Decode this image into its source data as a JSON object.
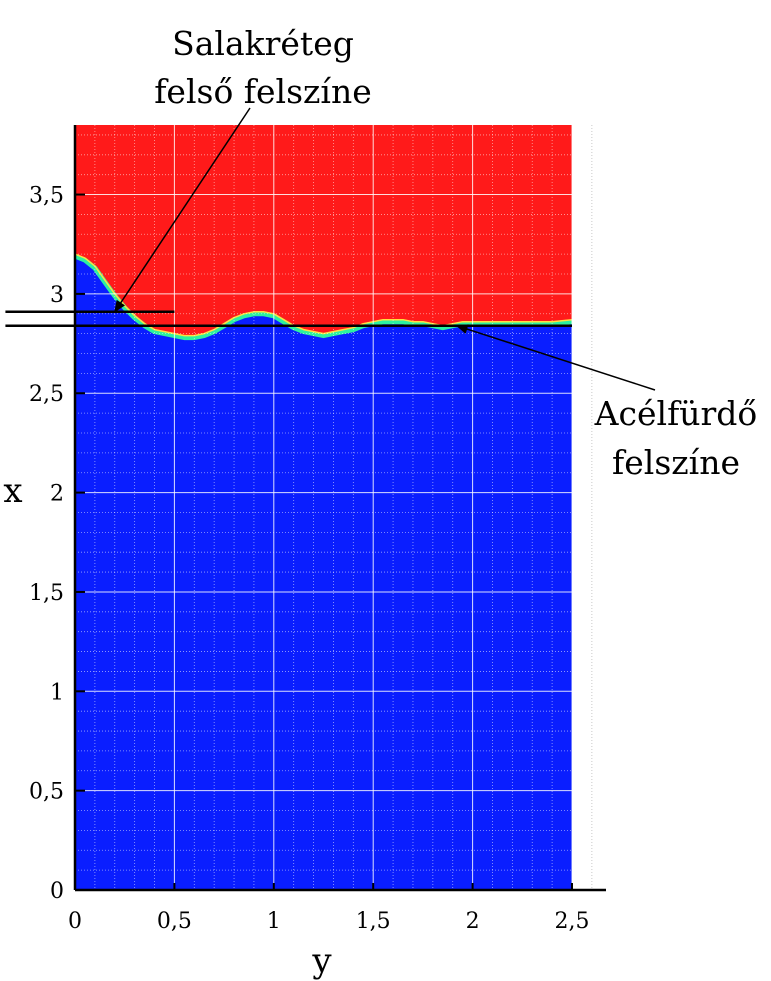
{
  "chart_data": {
    "type": "heatmap",
    "xlabel": "y",
    "ylabel": "x",
    "xlim": [
      0,
      2.5
    ],
    "ylim": [
      0,
      3.85
    ],
    "x_ticks": [
      {
        "value": 0,
        "label": "0"
      },
      {
        "value": 0.5,
        "label": "0,5"
      },
      {
        "value": 1,
        "label": "1"
      },
      {
        "value": 1.5,
        "label": "1,5"
      },
      {
        "value": 2,
        "label": "2"
      },
      {
        "value": 2.5,
        "label": "2,5"
      }
    ],
    "y_ticks": [
      {
        "value": 0,
        "label": "0"
      },
      {
        "value": 0.5,
        "label": "0,5"
      },
      {
        "value": 1,
        "label": "1"
      },
      {
        "value": 1.5,
        "label": "1,5"
      },
      {
        "value": 2,
        "label": "2"
      },
      {
        "value": 2.5,
        "label": "2,5"
      },
      {
        "value": 3,
        "label": "3"
      },
      {
        "value": 3.5,
        "label": "3,5"
      }
    ],
    "grid": true,
    "colors": {
      "upper_phase": "#ff1a1a",
      "lower_phase": "#0a1eff",
      "interface": "#2cf0a0"
    },
    "interface_profile": {
      "y": [
        0,
        0.05,
        0.1,
        0.15,
        0.2,
        0.25,
        0.3,
        0.35,
        0.4,
        0.45,
        0.5,
        0.55,
        0.6,
        0.65,
        0.7,
        0.75,
        0.8,
        0.85,
        0.9,
        0.95,
        1.0,
        1.05,
        1.1,
        1.15,
        1.2,
        1.25,
        1.3,
        1.35,
        1.4,
        1.45,
        1.5,
        1.55,
        1.6,
        1.65,
        1.7,
        1.75,
        1.8,
        1.85,
        1.9,
        1.95,
        2.0,
        2.1,
        2.2,
        2.3,
        2.4,
        2.5
      ],
      "x": [
        3.19,
        3.17,
        3.13,
        3.06,
        2.99,
        2.93,
        2.88,
        2.84,
        2.81,
        2.8,
        2.79,
        2.78,
        2.78,
        2.79,
        2.81,
        2.84,
        2.87,
        2.89,
        2.9,
        2.9,
        2.89,
        2.86,
        2.83,
        2.81,
        2.8,
        2.79,
        2.8,
        2.81,
        2.82,
        2.84,
        2.85,
        2.86,
        2.86,
        2.86,
        2.85,
        2.85,
        2.84,
        2.83,
        2.84,
        2.85,
        2.85,
        2.85,
        2.85,
        2.85,
        2.85,
        2.86
      ]
    },
    "reference_lines": [
      {
        "name": "slag-top-line",
        "x_value": 2.91,
        "y_from": -0.35,
        "y_to": 0.5
      },
      {
        "name": "steel-surface-line",
        "x_value": 2.84,
        "y_from": -0.35,
        "y_to": 2.5
      }
    ],
    "annotations": [
      {
        "name": "slag-annotation",
        "lines": [
          "Salakréteg",
          "felső felszíne"
        ],
        "points_to": {
          "y": 0.2,
          "x": 2.91
        }
      },
      {
        "name": "steel-annotation",
        "lines": [
          "Acélfürdő",
          "felszíne"
        ],
        "points_to": {
          "y": 1.92,
          "x": 2.84
        }
      }
    ]
  }
}
